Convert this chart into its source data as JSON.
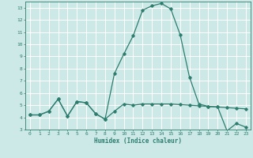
{
  "xlabel": "Humidex (Indice chaleur)",
  "bg_color": "#cce9e8",
  "line_color": "#2d7d6e",
  "grid_color": "#ffffff",
  "xlim": [
    -0.5,
    23.5
  ],
  "ylim": [
    3,
    13.5
  ],
  "yticks": [
    3,
    4,
    5,
    6,
    7,
    8,
    9,
    10,
    11,
    12,
    13
  ],
  "xticks": [
    0,
    1,
    2,
    3,
    4,
    5,
    6,
    7,
    8,
    9,
    10,
    11,
    12,
    13,
    14,
    15,
    16,
    17,
    18,
    19,
    20,
    21,
    22,
    23
  ],
  "series_humidex_x": [
    0,
    1,
    2,
    3,
    4,
    5,
    6,
    7,
    8,
    9,
    10,
    11,
    12,
    13,
    14,
    15,
    16,
    17,
    18,
    19,
    20,
    21,
    22,
    23
  ],
  "series_humidex_y": [
    4.2,
    4.2,
    4.5,
    5.5,
    4.1,
    5.3,
    5.2,
    4.3,
    3.85,
    7.6,
    9.2,
    10.7,
    12.8,
    13.15,
    13.35,
    12.9,
    10.8,
    7.3,
    5.1,
    4.9,
    4.85,
    2.9,
    3.5,
    3.2
  ],
  "series_trend_x": [
    0,
    1,
    2,
    3,
    4,
    5,
    6,
    7,
    8,
    9,
    10,
    11,
    12,
    13,
    14,
    15,
    16,
    17,
    18,
    19,
    20,
    21,
    22,
    23
  ],
  "series_trend_y": [
    4.2,
    4.2,
    4.5,
    5.5,
    4.1,
    5.3,
    5.2,
    4.3,
    3.85,
    4.5,
    5.1,
    5.0,
    5.1,
    5.1,
    5.1,
    5.1,
    5.05,
    5.0,
    4.95,
    4.9,
    4.85,
    4.8,
    4.75,
    4.7
  ],
  "marker": "D",
  "markersize": 1.8,
  "linewidth": 0.9
}
